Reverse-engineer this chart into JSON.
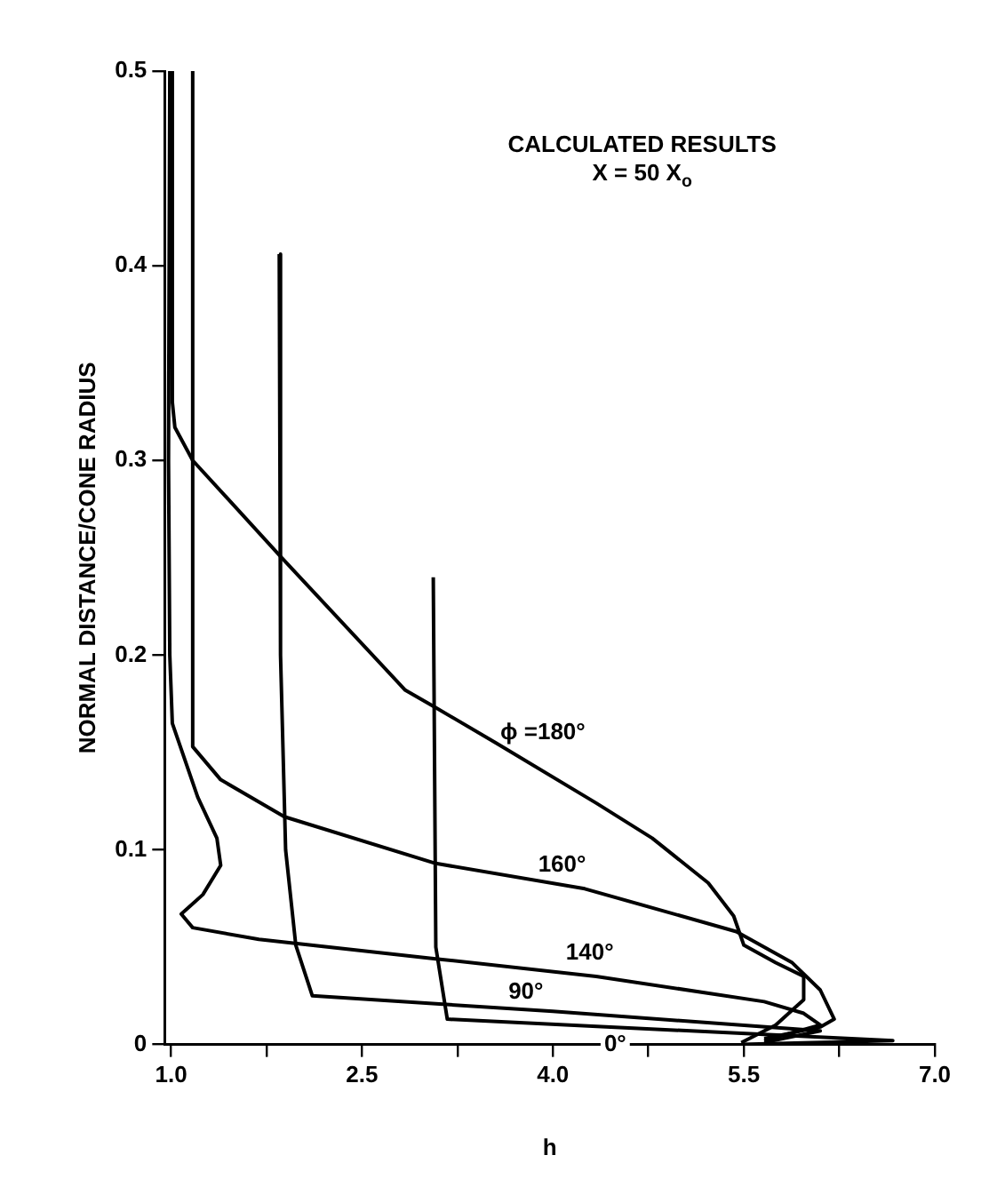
{
  "chart_data": {
    "type": "line",
    "title": "CALCULATED RESULTS",
    "subtitle": "X = 50 X$_{o}$",
    "xlabel": "h",
    "ylabel": "NORMAL DISTANCE/CONE RADIUS",
    "xlim": [
      0.95,
      7.0
    ],
    "ylim": [
      0,
      0.5
    ],
    "xticks": [
      {
        "value": 1,
        "label": "1.0"
      },
      {
        "value": 1.75,
        "label": null
      },
      {
        "value": 2.5,
        "label": "2.5"
      },
      {
        "value": 3.25,
        "label": null
      },
      {
        "value": 4,
        "label": "4.0"
      },
      {
        "value": 4.75,
        "label": null
      },
      {
        "value": 5.5,
        "label": "5.5"
      },
      {
        "value": 6.25,
        "label": null
      },
      {
        "value": 7,
        "label": "7.0"
      }
    ],
    "yticks": [
      0,
      0.1,
      0.2,
      0.3,
      0.4,
      0.5
    ],
    "grid": false,
    "legend": false,
    "marker": "none",
    "line_style": "solid",
    "series": [
      {
        "name": "ϕ =180°",
        "color": "#000000",
        "x": [
          1.01,
          1.01,
          1.03,
          1.17,
          1.87,
          2.84,
          3.08,
          3.55,
          4.34,
          4.78,
          5.22,
          5.42,
          5.5,
          5.75,
          5.97,
          5.97,
          5.75,
          5.48
        ],
        "values": [
          0.5,
          0.33,
          0.317,
          0.3,
          0.25,
          0.182,
          0.173,
          0.155,
          0.124,
          0.106,
          0.083,
          0.066,
          0.051,
          0.042,
          0.035,
          0.023,
          0.01,
          0.001
        ]
      },
      {
        "name": "160°",
        "color": "#000000",
        "x": [
          1.17,
          1.17,
          1.39,
          1.89,
          3.08,
          4.25,
          5.44,
          5.88,
          6.1,
          6.21,
          6.1,
          5.66
        ],
        "values": [
          0.5,
          0.153,
          0.136,
          0.117,
          0.093,
          0.08,
          0.058,
          0.042,
          0.028,
          0.013,
          0.009,
          0.003
        ]
      },
      {
        "name": "140°",
        "color": "#000000",
        "x": [
          0.99,
          0.98,
          0.99,
          1.01,
          1.21,
          1.36,
          1.39,
          1.25,
          1.08,
          1.17,
          1.69,
          3.08,
          4.34,
          5.66,
          5.97,
          6.1,
          5.66
        ],
        "values": [
          0.5,
          0.3,
          0.2,
          0.165,
          0.127,
          0.106,
          0.092,
          0.077,
          0.067,
          0.06,
          0.054,
          0.044,
          0.035,
          0.022,
          0.016,
          0.01,
          0.002
        ]
      },
      {
        "name": "90°",
        "color": "#000000",
        "x": [
          1.85,
          1.86,
          1.9,
          1.98,
          2.11,
          4.0,
          6.1,
          5.66
        ],
        "values": [
          0.406,
          0.2,
          0.1,
          0.051,
          0.025,
          0.017,
          0.007,
          0.001
        ]
      },
      {
        "name": "0°",
        "color": "#000000",
        "x": [
          3.06,
          3.08,
          3.17,
          6.67,
          5.48
        ],
        "values": [
          0.24,
          0.05,
          0.013,
          0.002,
          0
        ]
      }
    ]
  }
}
